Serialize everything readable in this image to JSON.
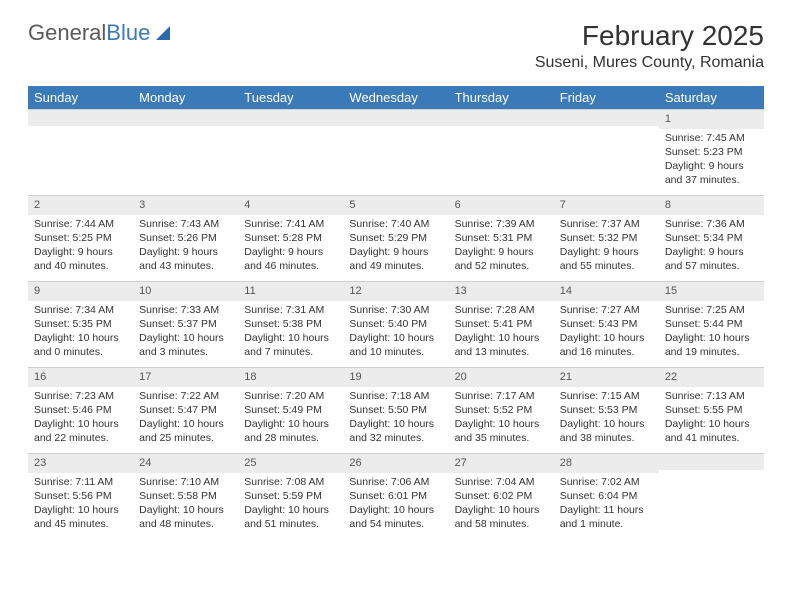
{
  "logo": {
    "textGray": "General",
    "textBlue": "Blue"
  },
  "header": {
    "monthTitle": "February 2025",
    "location": "Suseni, Mures County, Romania"
  },
  "colors": {
    "headerBar": "#3a7ab8",
    "headerText": "#ffffff",
    "dayNumBg": "#ececec",
    "gridLine": "#cfcfcf",
    "bodyText": "#333333",
    "logoGray": "#5a5a5a",
    "logoBlue": "#3a7ab8"
  },
  "typography": {
    "title_fontsize": 28,
    "location_fontsize": 16,
    "dayheader_fontsize": 13,
    "cell_fontsize": 10.5
  },
  "dayHeaders": [
    "Sunday",
    "Monday",
    "Tuesday",
    "Wednesday",
    "Thursday",
    "Friday",
    "Saturday"
  ],
  "weeks": [
    [
      {
        "n": "",
        "lines": []
      },
      {
        "n": "",
        "lines": []
      },
      {
        "n": "",
        "lines": []
      },
      {
        "n": "",
        "lines": []
      },
      {
        "n": "",
        "lines": []
      },
      {
        "n": "",
        "lines": []
      },
      {
        "n": "1",
        "lines": [
          "Sunrise: 7:45 AM",
          "Sunset: 5:23 PM",
          "Daylight: 9 hours and 37 minutes."
        ]
      }
    ],
    [
      {
        "n": "2",
        "lines": [
          "Sunrise: 7:44 AM",
          "Sunset: 5:25 PM",
          "Daylight: 9 hours and 40 minutes."
        ]
      },
      {
        "n": "3",
        "lines": [
          "Sunrise: 7:43 AM",
          "Sunset: 5:26 PM",
          "Daylight: 9 hours and 43 minutes."
        ]
      },
      {
        "n": "4",
        "lines": [
          "Sunrise: 7:41 AM",
          "Sunset: 5:28 PM",
          "Daylight: 9 hours and 46 minutes."
        ]
      },
      {
        "n": "5",
        "lines": [
          "Sunrise: 7:40 AM",
          "Sunset: 5:29 PM",
          "Daylight: 9 hours and 49 minutes."
        ]
      },
      {
        "n": "6",
        "lines": [
          "Sunrise: 7:39 AM",
          "Sunset: 5:31 PM",
          "Daylight: 9 hours and 52 minutes."
        ]
      },
      {
        "n": "7",
        "lines": [
          "Sunrise: 7:37 AM",
          "Sunset: 5:32 PM",
          "Daylight: 9 hours and 55 minutes."
        ]
      },
      {
        "n": "8",
        "lines": [
          "Sunrise: 7:36 AM",
          "Sunset: 5:34 PM",
          "Daylight: 9 hours and 57 minutes."
        ]
      }
    ],
    [
      {
        "n": "9",
        "lines": [
          "Sunrise: 7:34 AM",
          "Sunset: 5:35 PM",
          "Daylight: 10 hours and 0 minutes."
        ]
      },
      {
        "n": "10",
        "lines": [
          "Sunrise: 7:33 AM",
          "Sunset: 5:37 PM",
          "Daylight: 10 hours and 3 minutes."
        ]
      },
      {
        "n": "11",
        "lines": [
          "Sunrise: 7:31 AM",
          "Sunset: 5:38 PM",
          "Daylight: 10 hours and 7 minutes."
        ]
      },
      {
        "n": "12",
        "lines": [
          "Sunrise: 7:30 AM",
          "Sunset: 5:40 PM",
          "Daylight: 10 hours and 10 minutes."
        ]
      },
      {
        "n": "13",
        "lines": [
          "Sunrise: 7:28 AM",
          "Sunset: 5:41 PM",
          "Daylight: 10 hours and 13 minutes."
        ]
      },
      {
        "n": "14",
        "lines": [
          "Sunrise: 7:27 AM",
          "Sunset: 5:43 PM",
          "Daylight: 10 hours and 16 minutes."
        ]
      },
      {
        "n": "15",
        "lines": [
          "Sunrise: 7:25 AM",
          "Sunset: 5:44 PM",
          "Daylight: 10 hours and 19 minutes."
        ]
      }
    ],
    [
      {
        "n": "16",
        "lines": [
          "Sunrise: 7:23 AM",
          "Sunset: 5:46 PM",
          "Daylight: 10 hours and 22 minutes."
        ]
      },
      {
        "n": "17",
        "lines": [
          "Sunrise: 7:22 AM",
          "Sunset: 5:47 PM",
          "Daylight: 10 hours and 25 minutes."
        ]
      },
      {
        "n": "18",
        "lines": [
          "Sunrise: 7:20 AM",
          "Sunset: 5:49 PM",
          "Daylight: 10 hours and 28 minutes."
        ]
      },
      {
        "n": "19",
        "lines": [
          "Sunrise: 7:18 AM",
          "Sunset: 5:50 PM",
          "Daylight: 10 hours and 32 minutes."
        ]
      },
      {
        "n": "20",
        "lines": [
          "Sunrise: 7:17 AM",
          "Sunset: 5:52 PM",
          "Daylight: 10 hours and 35 minutes."
        ]
      },
      {
        "n": "21",
        "lines": [
          "Sunrise: 7:15 AM",
          "Sunset: 5:53 PM",
          "Daylight: 10 hours and 38 minutes."
        ]
      },
      {
        "n": "22",
        "lines": [
          "Sunrise: 7:13 AM",
          "Sunset: 5:55 PM",
          "Daylight: 10 hours and 41 minutes."
        ]
      }
    ],
    [
      {
        "n": "23",
        "lines": [
          "Sunrise: 7:11 AM",
          "Sunset: 5:56 PM",
          "Daylight: 10 hours and 45 minutes."
        ]
      },
      {
        "n": "24",
        "lines": [
          "Sunrise: 7:10 AM",
          "Sunset: 5:58 PM",
          "Daylight: 10 hours and 48 minutes."
        ]
      },
      {
        "n": "25",
        "lines": [
          "Sunrise: 7:08 AM",
          "Sunset: 5:59 PM",
          "Daylight: 10 hours and 51 minutes."
        ]
      },
      {
        "n": "26",
        "lines": [
          "Sunrise: 7:06 AM",
          "Sunset: 6:01 PM",
          "Daylight: 10 hours and 54 minutes."
        ]
      },
      {
        "n": "27",
        "lines": [
          "Sunrise: 7:04 AM",
          "Sunset: 6:02 PM",
          "Daylight: 10 hours and 58 minutes."
        ]
      },
      {
        "n": "28",
        "lines": [
          "Sunrise: 7:02 AM",
          "Sunset: 6:04 PM",
          "Daylight: 11 hours and 1 minute."
        ]
      },
      {
        "n": "",
        "lines": []
      }
    ]
  ]
}
